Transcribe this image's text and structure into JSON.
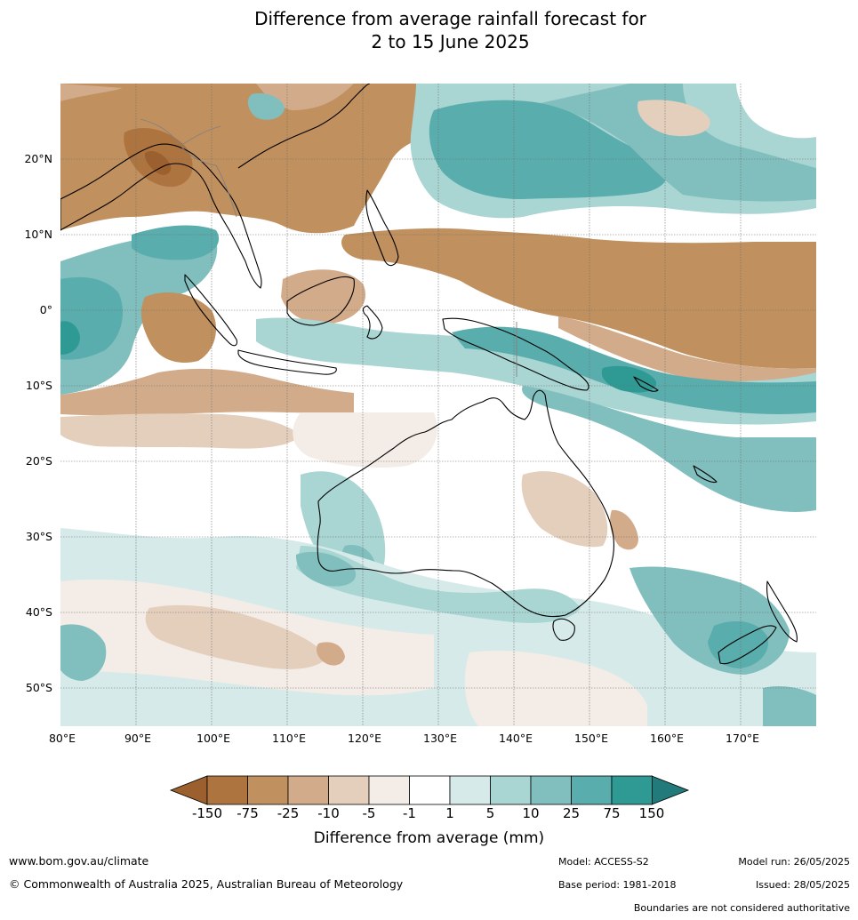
{
  "title": {
    "line1": "Difference from average rainfall forecast for",
    "line2": "2 to 15 June 2025"
  },
  "map": {
    "lat_labels": [
      "20°N",
      "10°N",
      "0°",
      "10°S",
      "20°S",
      "30°S",
      "40°S",
      "50°S"
    ],
    "lon_labels": [
      "80°E",
      "90°E",
      "100°E",
      "110°E",
      "120°E",
      "130°E",
      "140°E",
      "150°E",
      "160°E",
      "170°E"
    ],
    "palette": {
      "dry_extreme": "#9c5f2e",
      "dry_150": "#ad7440",
      "dry_75": "#c0905f",
      "dry_25": "#d2ac8a",
      "dry_10": "#e4cfbd",
      "dry_5": "#f4ece6",
      "neutral": "#ffffff",
      "wet_5": "#d6ebe9",
      "wet_10": "#a9d5d3",
      "wet_25": "#81bfbe",
      "wet_75": "#5aadad",
      "wet_150": "#2f9994",
      "wet_extreme": "#237a7a",
      "coastline": "#000000",
      "borders": "#808080"
    }
  },
  "colorbar": {
    "ticks": [
      "-150",
      "-75",
      "-25",
      "-10",
      "-5",
      "-1",
      "1",
      "5",
      "10",
      "25",
      "75",
      "150"
    ],
    "colors": [
      "#ad7440",
      "#c0905f",
      "#d2ac8a",
      "#e4cfbd",
      "#f4ece6",
      "#ffffff",
      "#d6ebe9",
      "#a9d5d3",
      "#81bfbe",
      "#5aadad",
      "#2f9994"
    ],
    "low_extend_color": "#9c5f2e",
    "high_extend_color": "#237a7a",
    "title": "Difference from average (mm)"
  },
  "footer": {
    "website": "www.bom.gov.au/climate",
    "copyright": "© Commonwealth of Australia 2025, Australian Bureau of Meteorology",
    "model": "Model: ACCESS-S2",
    "base_period": "Base period: 1981-2018",
    "model_run": "Model run: 26/05/2025",
    "issued": "Issued: 28/05/2025",
    "boundaries_note": "Boundaries are not considered authoritative"
  }
}
